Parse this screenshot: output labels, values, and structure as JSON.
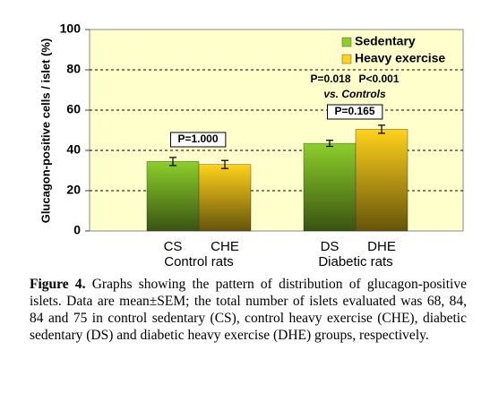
{
  "chart_data": {
    "type": "bar",
    "ylabel": "Glucagon-positive cells / islet (%)",
    "ylim": [
      0,
      100
    ],
    "yticks": [
      0,
      20,
      40,
      60,
      80,
      100
    ],
    "grid": true,
    "legend": "upper right",
    "categories": [
      "Control rats",
      "Diabetic rats"
    ],
    "series": [
      {
        "name": "Sedentary",
        "color": "#8ccf2a",
        "labels": [
          "CS",
          "DS"
        ],
        "values": [
          34.5,
          43.5
        ],
        "errors": [
          2,
          1.5
        ]
      },
      {
        "name": "Heavy exercise",
        "color": "#ffd21a",
        "labels": [
          "CHE",
          "DHE"
        ],
        "values": [
          33,
          50.5
        ],
        "errors": [
          2,
          2
        ]
      }
    ],
    "annotations": [
      "P=1.000",
      "P=0.018",
      "P<0.001",
      "vs. Controls",
      "P=0.165"
    ]
  },
  "caption": {
    "label": "Figure 4.",
    "text": "Graphs showing the pattern of distribution of glucagon-positive islets. Data are mean±SEM; the total number of islets evaluated was 68, 84, 84 and 75 in control sedentary (CS), control heavy exercise (CHE), diabetic sedentary (DS) and diabetic heavy exercise (DHE) groups, respectively."
  }
}
